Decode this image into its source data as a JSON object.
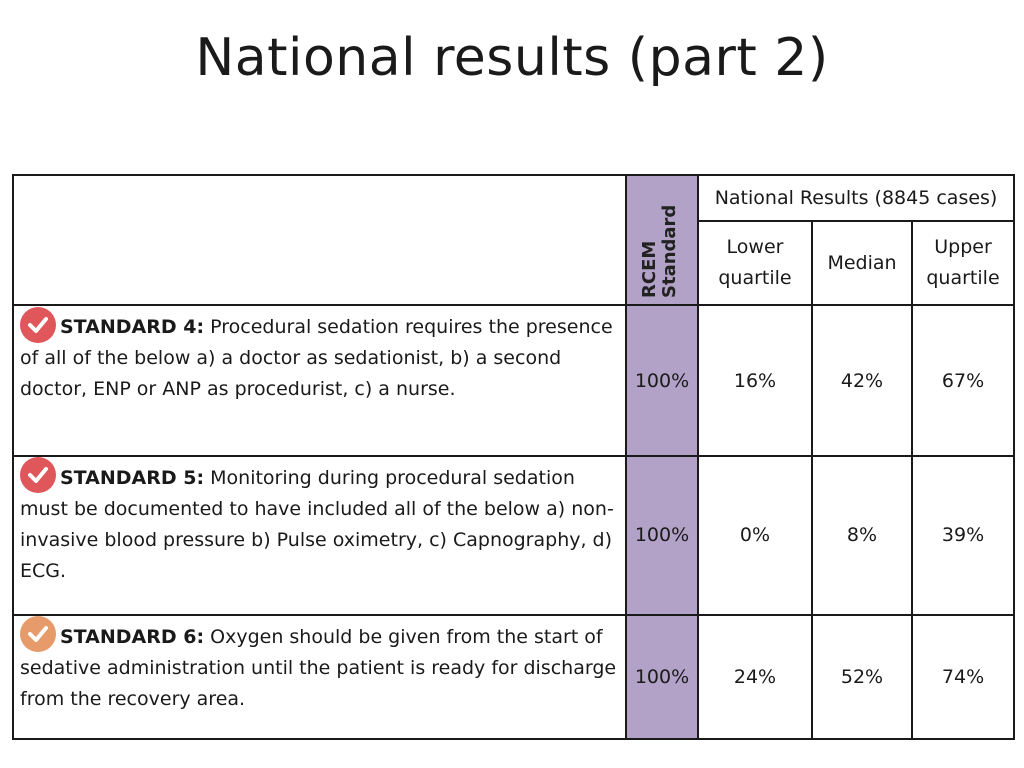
{
  "slide": {
    "title": "National results (part 2)"
  },
  "table": {
    "rcem_header_line1": "RCEM",
    "rcem_header_line2": "Standard",
    "group_header": "National Results (8845 cases)",
    "col_lower": "Lower quartile",
    "col_lower_line1": "Lower",
    "col_lower_line2": "quartile",
    "col_median": "Median",
    "col_upper_line1": "Upper",
    "col_upper_line2": "quartile",
    "rows": [
      {
        "label": "STANDARD 4:",
        "text": " Procedural sedation requires the presence of all of the below a) a doctor as sedationist, b) a second doctor, ENP or ANP as procedurist, c) a nurse.",
        "rcem": "100%",
        "lower": "16%",
        "median": "42%",
        "upper": "67%",
        "badge_icon": "check-circle-icon",
        "badge_color": "#e0575b"
      },
      {
        "label": "STANDARD 5:",
        "text": " Monitoring during procedural sedation must be documented to have included all of the below a) non-invasive blood pressure b) Pulse oximetry, c) Capnography, d) ECG.",
        "rcem": "100%",
        "lower": "0%",
        "median": "8%",
        "upper": "39%",
        "badge_icon": "check-circle-icon",
        "badge_color": "#e0575b"
      },
      {
        "label": "STANDARD 6:",
        "text": " Oxygen should be given from the start of sedative administration until the patient is ready for discharge from the recovery area.",
        "rcem": "100%",
        "lower": "24%",
        "median": "52%",
        "upper": "74%",
        "badge_icon": "check-circle-icon",
        "badge_color": "#e79a6a"
      }
    ]
  },
  "colors": {
    "rcem_column": "#b3a2c7",
    "border": "#1a1a1a"
  }
}
